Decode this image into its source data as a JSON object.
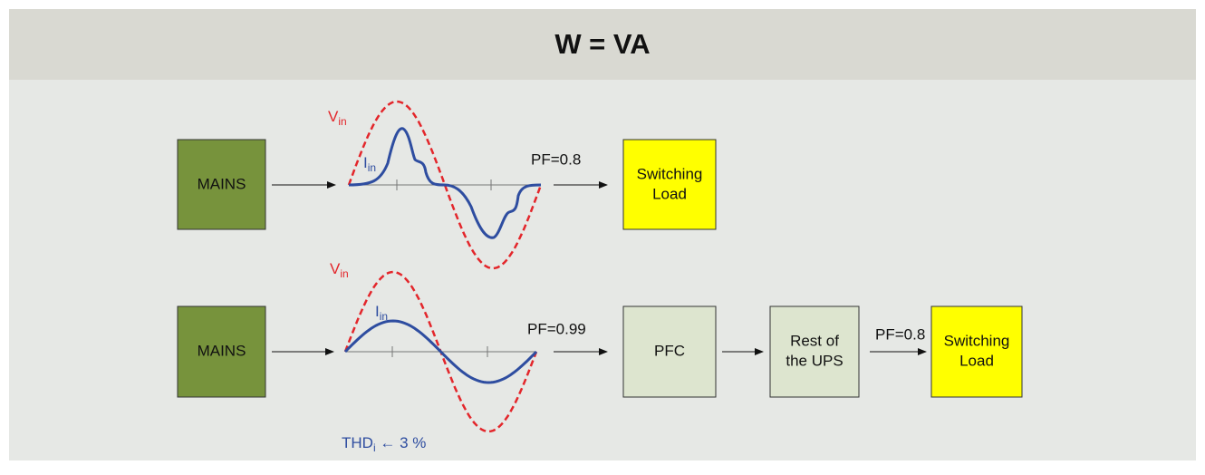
{
  "header": {
    "title": "W = VA"
  },
  "rows": [
    {
      "source": [
        "MAINS"
      ],
      "voltage": {
        "main": "V",
        "sub": "in"
      },
      "current": {
        "main": "I",
        "sub": "in"
      },
      "pf": "PF=0.8",
      "blocks": [
        {
          "lines": [
            "Switching",
            "Load"
          ]
        }
      ]
    },
    {
      "source": [
        "MAINS"
      ],
      "voltage": {
        "main": "V",
        "sub": "in"
      },
      "current": {
        "main": "I",
        "sub": "in"
      },
      "pf": "PF=0.99",
      "blocks": [
        {
          "lines": [
            "PFC"
          ]
        },
        {
          "lines": [
            "Rest of",
            "the UPS"
          ]
        },
        {
          "lines": [
            "Switching",
            "Load"
          ]
        }
      ],
      "pf2": "PF=0.8",
      "thd": {
        "main": "THD",
        "sub": "i",
        "rest": " ← 3 %"
      }
    }
  ]
}
